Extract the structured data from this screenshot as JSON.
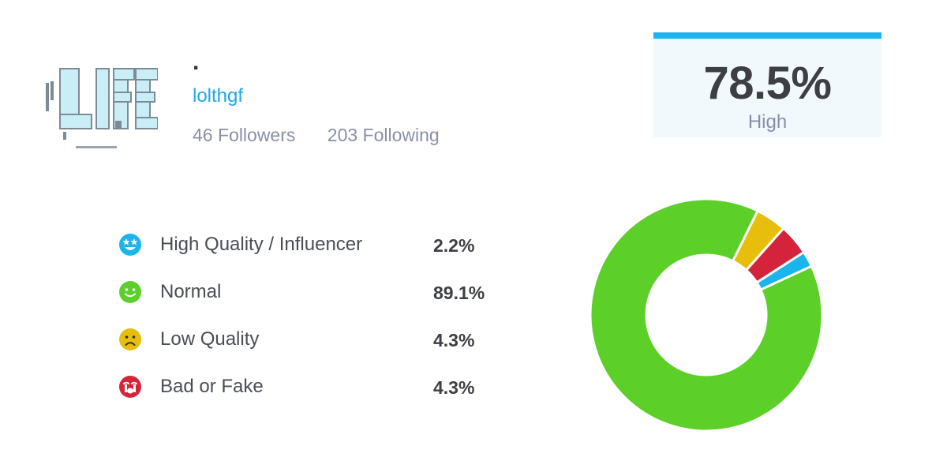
{
  "profile": {
    "name": ".",
    "handle": "lolthgf",
    "followers": "46 Followers",
    "following": "203 Following"
  },
  "score": {
    "value": "78.5%",
    "label": "High",
    "accent": "#1ab5ec"
  },
  "breakdown": [
    {
      "label": "High Quality / Influencer",
      "value": "2.2%",
      "icon": "star-eyes-face-icon",
      "color": "#1ab5ec"
    },
    {
      "label": "Normal",
      "value": "89.1%",
      "icon": "smile-face-icon",
      "color": "#5ccf29"
    },
    {
      "label": "Low Quality",
      "value": "4.3%",
      "icon": "frown-face-icon",
      "color": "#e6be0b"
    },
    {
      "label": "Bad or Fake",
      "value": "4.3%",
      "icon": "crying-face-icon",
      "color": "#d3243c"
    }
  ],
  "chart_data": {
    "type": "pie",
    "categories": [
      "High Quality / Influencer",
      "Normal",
      "Low Quality",
      "Bad or Fake"
    ],
    "values": [
      2.2,
      89.1,
      4.3,
      4.3
    ],
    "colors": [
      "#1ab5ec",
      "#5ccf29",
      "#e6be0b",
      "#d3243c"
    ],
    "donut": true
  }
}
